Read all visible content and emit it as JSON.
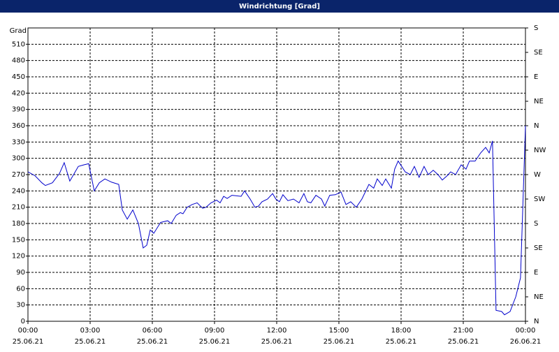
{
  "chart_data": {
    "type": "line",
    "title": "Windrichtung [Grad]",
    "ylabel": "Grad",
    "xlim": [
      0,
      24
    ],
    "ylim": [
      0,
      540
    ],
    "y2lim": [
      0,
      540
    ],
    "xticks": [
      {
        "value": 0,
        "label": "00:00"
      },
      {
        "value": 3,
        "label": "03:00"
      },
      {
        "value": 6,
        "label": "06:00"
      },
      {
        "value": 9,
        "label": "09:00"
      },
      {
        "value": 12,
        "label": "12:00"
      },
      {
        "value": 15,
        "label": "15:00"
      },
      {
        "value": 18,
        "label": "18:00"
      },
      {
        "value": 21,
        "label": "21:00"
      },
      {
        "value": 24,
        "label": "00:00"
      }
    ],
    "xtick_dates": [
      "25.06.21",
      "25.06.21",
      "25.06.21",
      "25.06.21",
      "25.06.21",
      "25.06.21",
      "25.06.21",
      "25.06.21",
      "26.06.21"
    ],
    "yticks": [
      0,
      30,
      60,
      90,
      120,
      150,
      180,
      210,
      240,
      270,
      300,
      330,
      360,
      390,
      420,
      450,
      480,
      510
    ],
    "y2ticks": [
      {
        "value": 0,
        "label": "N"
      },
      {
        "value": 45,
        "label": "NE"
      },
      {
        "value": 90,
        "label": "E"
      },
      {
        "value": 135,
        "label": "SE"
      },
      {
        "value": 180,
        "label": "S"
      },
      {
        "value": 225,
        "label": "SW"
      },
      {
        "value": 270,
        "label": "W"
      },
      {
        "value": 315,
        "label": "NW"
      },
      {
        "value": 360,
        "label": "N"
      },
      {
        "value": 405,
        "label": "NE"
      },
      {
        "value": 450,
        "label": "E"
      },
      {
        "value": 495,
        "label": "SE"
      },
      {
        "value": 540,
        "label": "S"
      }
    ],
    "grid": true,
    "color": "#0000cc",
    "x": [
      0.0,
      0.34,
      0.67,
      0.84,
      1.18,
      1.52,
      1.75,
      2.02,
      2.43,
      2.7,
      2.93,
      3.2,
      3.44,
      3.71,
      4.04,
      4.38,
      4.55,
      4.79,
      5.06,
      5.33,
      5.56,
      5.73,
      5.9,
      6.07,
      6.4,
      6.74,
      6.91,
      7.15,
      7.35,
      7.48,
      7.68,
      7.92,
      8.16,
      8.43,
      8.59,
      8.83,
      9.1,
      9.27,
      9.44,
      9.61,
      9.84,
      10.28,
      10.45,
      10.72,
      10.95,
      11.12,
      11.29,
      11.56,
      11.8,
      11.96,
      12.13,
      12.3,
      12.54,
      12.81,
      13.08,
      13.31,
      13.48,
      13.65,
      13.89,
      14.16,
      14.32,
      14.56,
      14.83,
      15.1,
      15.34,
      15.57,
      15.84,
      16.11,
      16.45,
      16.68,
      16.85,
      17.09,
      17.26,
      17.53,
      17.69,
      17.86,
      18.03,
      18.2,
      18.44,
      18.64,
      18.87,
      19.11,
      19.31,
      19.55,
      19.78,
      19.99,
      20.22,
      20.39,
      20.63,
      20.9,
      21.13,
      21.3,
      21.57,
      21.84,
      22.08,
      22.25,
      22.41,
      22.58,
      22.85,
      22.99,
      23.26,
      23.53,
      23.76,
      24.0
    ],
    "values": [
      275,
      268,
      255,
      250,
      255,
      272,
      292,
      258,
      285,
      288,
      290,
      240,
      255,
      262,
      256,
      252,
      205,
      188,
      205,
      180,
      135,
      140,
      168,
      162,
      182,
      185,
      180,
      195,
      200,
      198,
      210,
      215,
      218,
      208,
      210,
      218,
      223,
      218,
      230,
      226,
      232,
      230,
      240,
      225,
      210,
      212,
      220,
      225,
      235,
      225,
      220,
      233,
      222,
      225,
      218,
      235,
      220,
      218,
      232,
      225,
      212,
      232,
      233,
      238,
      215,
      220,
      210,
      225,
      252,
      245,
      262,
      250,
      262,
      245,
      280,
      295,
      285,
      275,
      270,
      285,
      265,
      285,
      270,
      278,
      270,
      260,
      268,
      275,
      270,
      288,
      280,
      295,
      295,
      310,
      320,
      310,
      332,
      20,
      18,
      12,
      18,
      45,
      80,
      360
    ]
  }
}
